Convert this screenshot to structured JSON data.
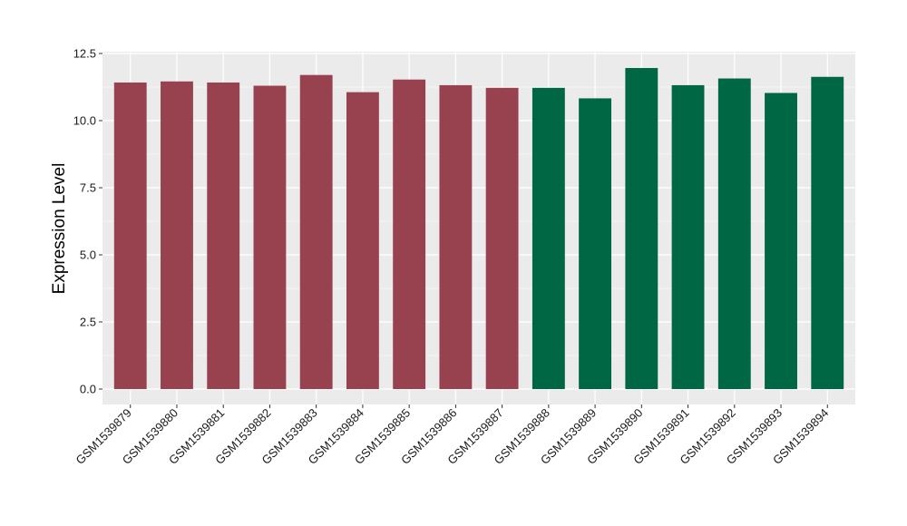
{
  "chart_data": {
    "type": "bar",
    "title": "",
    "xlabel": "",
    "ylabel": "Expression Level",
    "ylim": [
      0,
      12.5
    ],
    "yticks": [
      "0.0",
      "2.5",
      "5.0",
      "7.5",
      "10.0",
      "12.5"
    ],
    "grid": true,
    "categories": [
      "GSM1539879",
      "GSM1539880",
      "GSM1539881",
      "GSM1539882",
      "GSM1539883",
      "GSM1539884",
      "GSM1539885",
      "GSM1539886",
      "GSM1539887",
      "GSM1539888",
      "GSM1539889",
      "GSM1539890",
      "GSM1539891",
      "GSM1539892",
      "GSM1539893",
      "GSM1539894"
    ],
    "values": [
      11.42,
      11.46,
      11.42,
      11.3,
      11.7,
      11.06,
      11.53,
      11.32,
      11.22,
      11.22,
      10.83,
      11.96,
      11.32,
      11.57,
      11.03,
      11.63
    ],
    "group_of_bar": [
      0,
      0,
      0,
      0,
      0,
      0,
      0,
      0,
      0,
      1,
      1,
      1,
      1,
      1,
      1,
      1
    ],
    "group_colors": [
      "#99424f",
      "#006744"
    ],
    "panel_background": "#ebebeb",
    "gridline_color": "#ffffff"
  }
}
